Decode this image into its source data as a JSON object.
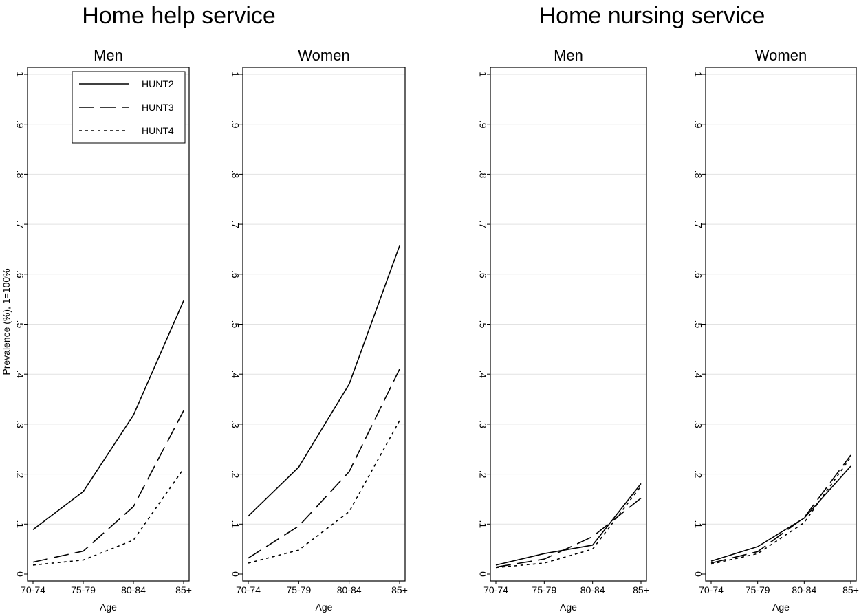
{
  "groups": [
    {
      "title": "Home help service"
    },
    {
      "title": "Home nursing service"
    }
  ],
  "legend": {
    "position": "top-right of first panel",
    "entries": [
      "HUNT2",
      "HUNT3",
      "HUNT4"
    ]
  },
  "chart_data": [
    {
      "type": "line",
      "group": "Home help service",
      "title": "Men",
      "xlabel": "Age",
      "ylabel": "Prevalence (%), 1=100%",
      "categories": [
        "70-74",
        "75-79",
        "80-84",
        "85+"
      ],
      "ylim": [
        0,
        1
      ],
      "yticks": [
        "0",
        ".1",
        ".2",
        ".3",
        ".4",
        ".5",
        ".6",
        ".7",
        ".8",
        ".9",
        "1"
      ],
      "grid": true,
      "series": [
        {
          "name": "HUNT2",
          "style": "solid",
          "values": [
            0.089,
            0.165,
            0.318,
            0.547
          ]
        },
        {
          "name": "HUNT3",
          "style": "dashed",
          "values": [
            0.024,
            0.046,
            0.135,
            0.327
          ]
        },
        {
          "name": "HUNT4",
          "style": "dotted",
          "values": [
            0.018,
            0.028,
            0.068,
            0.211
          ]
        }
      ]
    },
    {
      "type": "line",
      "group": "Home help service",
      "title": "Women",
      "xlabel": "Age",
      "ylabel": "",
      "categories": [
        "70-74",
        "75-79",
        "80-84",
        "85+"
      ],
      "ylim": [
        0,
        1
      ],
      "yticks": [
        "0",
        ".1",
        ".2",
        ".3",
        ".4",
        ".5",
        ".6",
        ".7",
        ".8",
        ".9",
        "1"
      ],
      "grid": true,
      "series": [
        {
          "name": "HUNT2",
          "style": "solid",
          "values": [
            0.116,
            0.214,
            0.38,
            0.657
          ]
        },
        {
          "name": "HUNT3",
          "style": "dashed",
          "values": [
            0.032,
            0.096,
            0.205,
            0.41
          ]
        },
        {
          "name": "HUNT4",
          "style": "dotted",
          "values": [
            0.022,
            0.048,
            0.125,
            0.307
          ]
        }
      ]
    },
    {
      "type": "line",
      "group": "Home nursing service",
      "title": "Men",
      "xlabel": "Age",
      "ylabel": "",
      "categories": [
        "70-74",
        "75-79",
        "80-84",
        "85+"
      ],
      "ylim": [
        0,
        1
      ],
      "yticks": [
        "0",
        ".1",
        ".2",
        ".3",
        ".4",
        ".5",
        ".6",
        ".7",
        ".8",
        ".9",
        "1"
      ],
      "grid": true,
      "series": [
        {
          "name": "HUNT2",
          "style": "solid",
          "values": [
            0.018,
            0.041,
            0.058,
            0.181
          ]
        },
        {
          "name": "HUNT3",
          "style": "dashed",
          "values": [
            0.014,
            0.03,
            0.075,
            0.152
          ]
        },
        {
          "name": "HUNT4",
          "style": "dotted",
          "values": [
            0.013,
            0.022,
            0.05,
            0.176
          ]
        }
      ]
    },
    {
      "type": "line",
      "group": "Home nursing service",
      "title": "Women",
      "xlabel": "Age",
      "ylabel": "",
      "categories": [
        "70-74",
        "75-79",
        "80-84",
        "85+"
      ],
      "ylim": [
        0,
        1
      ],
      "yticks": [
        "0",
        ".1",
        ".2",
        ".3",
        ".4",
        ".5",
        ".6",
        ".7",
        ".8",
        ".9",
        "1"
      ],
      "grid": true,
      "series": [
        {
          "name": "HUNT2",
          "style": "solid",
          "values": [
            0.026,
            0.055,
            0.112,
            0.216
          ]
        },
        {
          "name": "HUNT3",
          "style": "dashed",
          "values": [
            0.022,
            0.045,
            0.113,
            0.238
          ]
        },
        {
          "name": "HUNT4",
          "style": "dotted",
          "values": [
            0.02,
            0.041,
            0.103,
            0.234
          ]
        }
      ]
    }
  ]
}
